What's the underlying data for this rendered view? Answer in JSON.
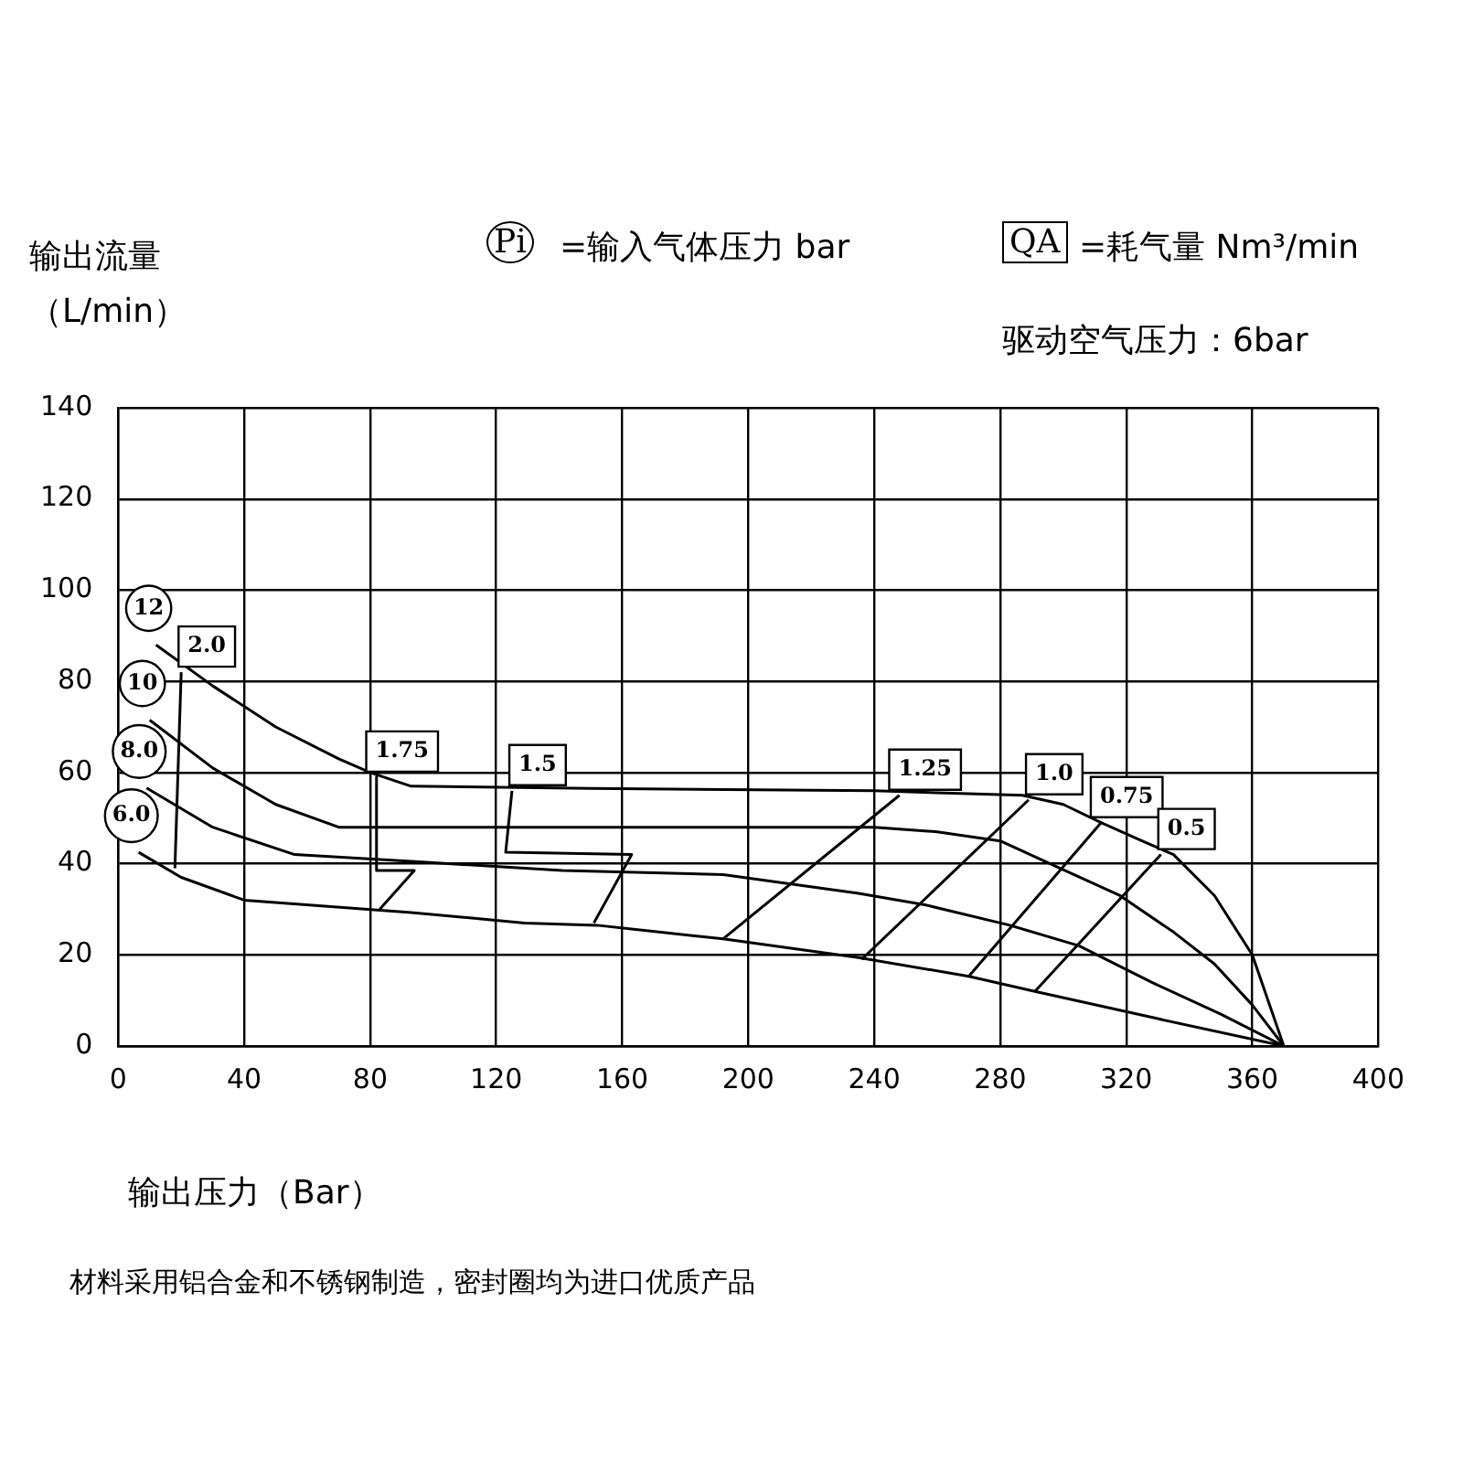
{
  "chart_data": {
    "type": "line",
    "xlabel": "输出压力（Bar）",
    "ylabel": "输出流量（L/min）",
    "annotations": [
      "Pi",
      "=输入气体压力 bar",
      "QA",
      "=耗气量 Nm³/min",
      "驱动空气压力：6bar",
      "材料采用铝合金和不锈钢制造，密封圈均为进口优质产品"
    ],
    "xlim": [
      0,
      400
    ],
    "xticks": [
      0,
      40,
      80,
      120,
      160,
      200,
      240,
      280,
      320,
      360,
      400
    ],
    "ylim": [
      0,
      140
    ],
    "yticks": [
      0,
      20,
      40,
      60,
      80,
      100,
      120,
      140
    ],
    "grid": true,
    "legend": false,
    "marker": "none",
    "line_style": "solid",
    "series": [
      {
        "name": "12",
        "color": "#000000",
        "x": [
          12,
          30,
          50,
          70,
          80,
          93,
          150,
          240,
          287,
          300,
          312,
          325,
          335,
          348,
          360,
          370
        ],
        "values": [
          88,
          79,
          70,
          63,
          60,
          57,
          56.5,
          56,
          55,
          53,
          49,
          45,
          42,
          33,
          20,
          0
        ]
      },
      {
        "name": "10",
        "color": "#000000",
        "x": [
          10,
          30,
          50,
          70,
          160,
          240,
          260,
          280,
          299,
          318,
          335,
          348,
          360,
          370
        ],
        "values": [
          71.5,
          61,
          53,
          48,
          48,
          48,
          47,
          45,
          39,
          33,
          25,
          18,
          9,
          0
        ]
      },
      {
        "name": "8.0",
        "color": "#000000",
        "x": [
          9,
          30,
          56,
          93,
          141,
          192,
          235,
          256,
          283,
          305,
          328,
          350,
          370
        ],
        "values": [
          56.6,
          48,
          42,
          40.5,
          38.5,
          37.6,
          33.5,
          31,
          26.5,
          22,
          14,
          7,
          0
        ]
      },
      {
        "name": "6.0",
        "color": "#000000",
        "x": [
          6.5,
          20,
          40,
          93,
          129,
          152,
          192,
          235,
          270,
          291,
          330,
          370
        ],
        "values": [
          42.5,
          37,
          32,
          29.3,
          27,
          26.5,
          23.5,
          19.4,
          15.3,
          12,
          6,
          0
        ]
      },
      {
        "name": "2.0",
        "color": "#000000",
        "x": [
          20,
          18
        ],
        "values": [
          82,
          39
        ]
      },
      {
        "name": "1.75",
        "color": "#000000",
        "x": [
          82,
          82,
          94,
          83
        ],
        "values": [
          59,
          38.5,
          38.5,
          30
        ]
      },
      {
        "name": "1.5",
        "color": "#000000",
        "x": [
          125,
          123,
          163,
          151
        ],
        "values": [
          56,
          42.5,
          42,
          27
        ]
      },
      {
        "name": "1.25",
        "color": "#000000",
        "x": [
          248,
          192
        ],
        "values": [
          55,
          23.5
        ]
      },
      {
        "name": "1.0",
        "color": "#000000",
        "x": [
          289,
          236
        ],
        "values": [
          54,
          19
        ]
      },
      {
        "name": "0.75",
        "color": "#000000",
        "x": [
          312,
          270
        ],
        "values": [
          49,
          15.3
        ]
      },
      {
        "name": "0.5",
        "color": "#000000",
        "x": [
          331,
          291
        ],
        "values": [
          42,
          12
        ]
      }
    ]
  }
}
